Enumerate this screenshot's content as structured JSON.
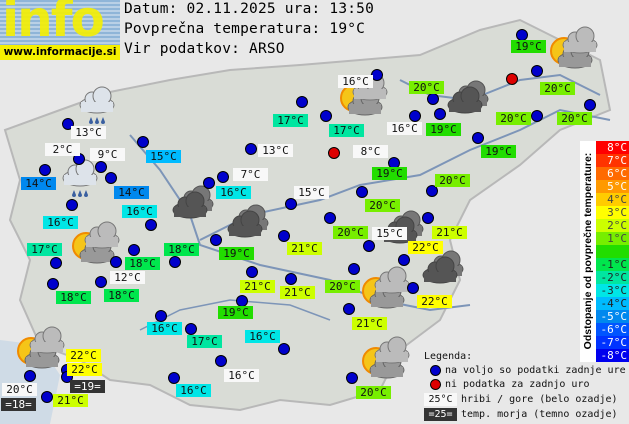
{
  "logo": {
    "text": "info",
    "url": "www.informacije.si"
  },
  "header": {
    "date_line": "Datum: 02.11.2025 ura: 13:50",
    "avg_line": "Povprečna temperatura: 19°C",
    "source_line": "Vir podatkov: ARSO"
  },
  "average_temperature": 19,
  "stations": [
    {
      "temp": "13°C",
      "kind": "mountain"
    },
    {
      "temp": "2°C",
      "kind": "mountain"
    },
    {
      "temp": "9°C",
      "kind": "mountain"
    },
    {
      "temp": "14°C",
      "kind": "normal"
    },
    {
      "temp": "15°C",
      "kind": "normal"
    },
    {
      "temp": "14°C",
      "kind": "normal"
    },
    {
      "temp": "16°C",
      "kind": "normal"
    },
    {
      "temp": "16°C",
      "kind": "normal"
    },
    {
      "temp": "17°C",
      "kind": "normal"
    },
    {
      "temp": "18°C",
      "kind": "normal"
    },
    {
      "temp": "12°C",
      "kind": "mountain"
    },
    {
      "temp": "18°C",
      "kind": "normal"
    },
    {
      "temp": "18°C",
      "kind": "normal"
    },
    {
      "temp": "18°C",
      "kind": "normal"
    },
    {
      "temp": "16°C",
      "kind": "normal"
    },
    {
      "temp": "17°C",
      "kind": "normal"
    },
    {
      "temp": "22°C",
      "kind": "normal"
    },
    {
      "temp": "22°C",
      "kind": "normal"
    },
    {
      "temp": "=19=",
      "kind": "sea"
    },
    {
      "temp": "20°C",
      "kind": "mountain"
    },
    {
      "temp": "=18=",
      "kind": "sea"
    },
    {
      "temp": "21°C",
      "kind": "normal"
    },
    {
      "temp": "16°C",
      "kind": "normal"
    },
    {
      "temp": "16°C",
      "kind": "mountain"
    },
    {
      "temp": "16°C",
      "kind": "normal"
    },
    {
      "temp": "19°C",
      "kind": "normal"
    },
    {
      "temp": "21°C",
      "kind": "normal"
    },
    {
      "temp": "21°C",
      "kind": "normal"
    },
    {
      "temp": "19°C",
      "kind": "normal"
    },
    {
      "temp": "21°C",
      "kind": "normal"
    },
    {
      "temp": "20°C",
      "kind": "normal"
    },
    {
      "temp": "15°C",
      "kind": "mountain"
    },
    {
      "temp": "21°C",
      "kind": "normal"
    },
    {
      "temp": "22°C",
      "kind": "normal"
    },
    {
      "temp": "20°C",
      "kind": "normal"
    },
    {
      "temp": "21°C",
      "kind": "normal"
    },
    {
      "temp": "22°C",
      "kind": "normal"
    },
    {
      "temp": "20°C",
      "kind": "normal"
    },
    {
      "temp": "20°C",
      "kind": "normal"
    },
    {
      "temp": "16°C",
      "kind": "mountain"
    },
    {
      "temp": "17°C",
      "kind": "normal"
    },
    {
      "temp": "17°C",
      "kind": "normal"
    },
    {
      "temp": "16°C",
      "kind": "mountain"
    },
    {
      "temp": "13°C",
      "kind": "mountain"
    },
    {
      "temp": "8°C",
      "kind": "mountain",
      "status": "missing"
    },
    {
      "temp": "7°C",
      "kind": "mountain"
    },
    {
      "temp": "16°C",
      "kind": "normal"
    },
    {
      "temp": "15°C",
      "kind": "mountain"
    },
    {
      "temp": "19°C",
      "kind": "normal"
    },
    {
      "temp": "19°C",
      "kind": "normal"
    },
    {
      "temp": "20°C",
      "kind": "normal"
    },
    {
      "temp": "20°C",
      "kind": "normal"
    },
    {
      "temp": "19°C",
      "kind": "normal"
    },
    {
      "temp": "20°C",
      "kind": "normal"
    },
    {
      "temp": "20°C",
      "kind": "normal"
    },
    {
      "temp": "19°C",
      "kind": "normal"
    },
    {
      "temp": "20°C",
      "kind": "normal"
    }
  ],
  "weather_icons": [
    "rain",
    "rain",
    "partly-cloudy",
    "partly-cloudy",
    "partly-cloudy",
    "partly-cloudy",
    "partly-cloudy",
    "partly-cloudy",
    "overcast",
    "overcast",
    "overcast",
    "overcast",
    "overcast"
  ],
  "scale": {
    "title": "Odstopanje od povprečne temperature:",
    "steps": [
      {
        "label": "8°C",
        "color": "#ff0000"
      },
      {
        "label": "7°C",
        "color": "#ff3300"
      },
      {
        "label": "6°C",
        "color": "#ff6a00"
      },
      {
        "label": "5°C",
        "color": "#ff9900"
      },
      {
        "label": "4°C",
        "color": "#ffcc00"
      },
      {
        "label": "3°C",
        "color": "#ffff00"
      },
      {
        "label": "2°C",
        "color": "#ccff00"
      },
      {
        "label": "1°C",
        "color": "#77ee00"
      },
      {
        "label": "",
        "color": "#22dd00"
      },
      {
        "label": "-1°C",
        "color": "#00e64d"
      },
      {
        "label": "-2°C",
        "color": "#00e6a0"
      },
      {
        "label": "-3°C",
        "color": "#00e6e6"
      },
      {
        "label": "-4°C",
        "color": "#00bbff"
      },
      {
        "label": "-5°C",
        "color": "#0088ee"
      },
      {
        "label": "-6°C",
        "color": "#0055ff"
      },
      {
        "label": "-7°C",
        "color": "#0033ff"
      },
      {
        "label": "-8°C",
        "color": "#0000ee"
      }
    ]
  },
  "legend": {
    "title": "Legenda:",
    "available": "na voljo so podatki zadnje ure",
    "missing": "ni podatka za zadnjo uro",
    "mountain_sample": "25°C",
    "mountain_text": "hribi / gore (belo ozadje)",
    "sea_sample": "=25=",
    "sea_text": "temp. morja (temno ozadje)"
  },
  "colors": {
    "dot_available": "#0000cc",
    "dot_missing": "#dd0000",
    "mountain_bg": "#f8f8f8",
    "sea_bg": "#333333",
    "sea_text": "#ffffff"
  }
}
